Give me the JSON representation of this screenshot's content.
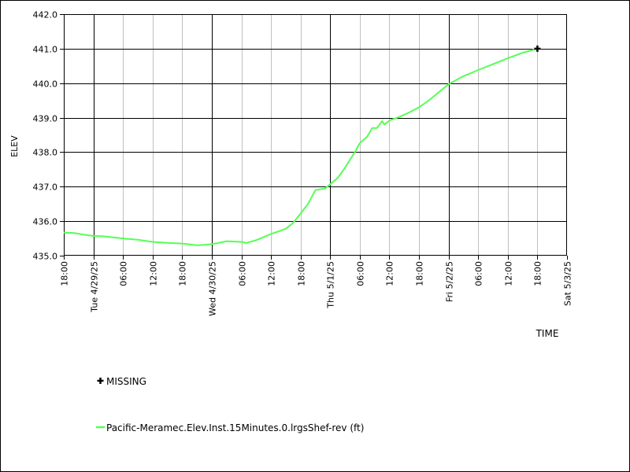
{
  "chart_data": {
    "type": "line",
    "ylabel": "ELEV",
    "xlabel": "TIME",
    "ylim": [
      435.0,
      442.0
    ],
    "xlim": [
      "2025-04-28 18:00",
      "2025-05-03 00:00"
    ],
    "y_ticks": [
      "442.0",
      "441.0",
      "440.0",
      "439.0",
      "438.0",
      "437.0",
      "436.0",
      "435.0"
    ],
    "x_ticks": [
      {
        "t": "2025-04-28 18:00",
        "label": "18:00",
        "major": false
      },
      {
        "t": "2025-04-29 00:00",
        "label": "Tue 4/29/25",
        "major": true
      },
      {
        "t": "2025-04-29 06:00",
        "label": "06:00",
        "major": false
      },
      {
        "t": "2025-04-29 12:00",
        "label": "12:00",
        "major": false
      },
      {
        "t": "2025-04-29 18:00",
        "label": "18:00",
        "major": false
      },
      {
        "t": "2025-04-30 00:00",
        "label": "Wed 4/30/25",
        "major": true
      },
      {
        "t": "2025-04-30 06:00",
        "label": "06:00",
        "major": false
      },
      {
        "t": "2025-04-30 12:00",
        "label": "12:00",
        "major": false
      },
      {
        "t": "2025-04-30 18:00",
        "label": "18:00",
        "major": false
      },
      {
        "t": "2025-05-01 00:00",
        "label": "Thu 5/1/25",
        "major": true
      },
      {
        "t": "2025-05-01 06:00",
        "label": "06:00",
        "major": false
      },
      {
        "t": "2025-05-01 12:00",
        "label": "12:00",
        "major": false
      },
      {
        "t": "2025-05-01 18:00",
        "label": "18:00",
        "major": false
      },
      {
        "t": "2025-05-02 00:00",
        "label": "Fri 5/2/25",
        "major": true
      },
      {
        "t": "2025-05-02 06:00",
        "label": "06:00",
        "major": false
      },
      {
        "t": "2025-05-02 12:00",
        "label": "12:00",
        "major": false
      },
      {
        "t": "2025-05-02 18:00",
        "label": "18:00",
        "major": false
      },
      {
        "t": "2025-05-03 00:00",
        "label": "Sat 5/3/25",
        "major": true
      }
    ],
    "grid": true,
    "series": [
      {
        "name": "Pacific-Meramec.Elev.Inst.15Minutes.0.lrgsShef-rev (ft)",
        "color": "#55ff55",
        "points": [
          [
            "2025-04-28 18:00",
            435.67
          ],
          [
            "2025-04-28 20:00",
            435.66
          ],
          [
            "2025-04-28 22:00",
            435.61
          ],
          [
            "2025-04-29 00:00",
            435.57
          ],
          [
            "2025-04-29 02:00",
            435.56
          ],
          [
            "2025-04-29 04:00",
            435.53
          ],
          [
            "2025-04-29 06:00",
            435.5
          ],
          [
            "2025-04-29 09:00",
            435.46
          ],
          [
            "2025-04-29 12:00",
            435.4
          ],
          [
            "2025-04-29 15:00",
            435.37
          ],
          [
            "2025-04-29 18:00",
            435.35
          ],
          [
            "2025-04-29 21:00",
            435.3
          ],
          [
            "2025-04-29 23:00",
            435.32
          ],
          [
            "2025-04-30 01:00",
            435.36
          ],
          [
            "2025-04-30 03:00",
            435.42
          ],
          [
            "2025-04-30 06:00",
            435.4
          ],
          [
            "2025-04-30 07:00",
            435.37
          ],
          [
            "2025-04-30 09:00",
            435.45
          ],
          [
            "2025-04-30 12:00",
            435.63
          ],
          [
            "2025-04-30 15:00",
            435.78
          ],
          [
            "2025-04-30 16:30",
            435.95
          ],
          [
            "2025-04-30 18:00",
            436.22
          ],
          [
            "2025-04-30 19:30",
            436.5
          ],
          [
            "2025-04-30 21:00",
            436.9
          ],
          [
            "2025-04-30 23:00",
            436.95
          ],
          [
            "2025-05-01 00:00",
            437.07
          ],
          [
            "2025-05-01 01:30",
            437.25
          ],
          [
            "2025-05-01 03:00",
            437.55
          ],
          [
            "2025-05-01 05:00",
            438.0
          ],
          [
            "2025-05-01 06:00",
            438.26
          ],
          [
            "2025-05-01 07:30",
            438.45
          ],
          [
            "2025-05-01 08:30",
            438.7
          ],
          [
            "2025-05-01 09:30",
            438.7
          ],
          [
            "2025-05-01 10:30",
            438.9
          ],
          [
            "2025-05-01 11:00",
            438.8
          ],
          [
            "2025-05-01 12:00",
            438.92
          ],
          [
            "2025-05-01 14:00",
            439.02
          ],
          [
            "2025-05-01 16:00",
            439.15
          ],
          [
            "2025-05-01 18:00",
            439.3
          ],
          [
            "2025-05-01 20:00",
            439.5
          ],
          [
            "2025-05-02 00:00",
            439.97
          ],
          [
            "2025-05-02 03:00",
            440.2
          ],
          [
            "2025-05-02 06:00",
            440.38
          ],
          [
            "2025-05-02 09:00",
            440.55
          ],
          [
            "2025-05-02 12:00",
            440.72
          ],
          [
            "2025-05-02 15:00",
            440.88
          ],
          [
            "2025-05-02 18:00",
            441.0
          ]
        ]
      }
    ],
    "markers": [
      {
        "name": "MISSING",
        "symbol": "+",
        "t": "2025-05-02 18:00",
        "y": 441.0
      }
    ]
  }
}
